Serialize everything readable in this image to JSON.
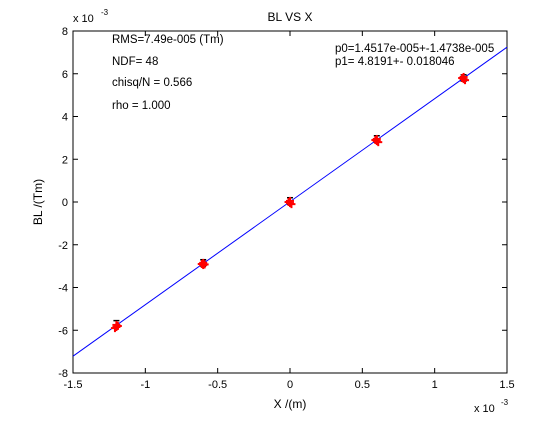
{
  "chart_data": {
    "type": "scatter",
    "title": "BL VS X",
    "xlabel": "X /(m)",
    "ylabel": "BL /(Tm)",
    "xlim": [
      -1.5,
      1.5
    ],
    "ylim": [
      -8,
      8
    ],
    "x_scale_label": "x 10",
    "x_scale_exponent": "-3",
    "y_scale_label": "x 10",
    "y_scale_exponent": "-3",
    "x_ticks": [
      "-1.5",
      "-1",
      "-0.5",
      "0",
      "0.5",
      "1",
      "1.5"
    ],
    "x_tick_values": [
      -1.5,
      -1,
      -0.5,
      0,
      0.5,
      1,
      1.5
    ],
    "y_ticks": [
      "-8",
      "-6",
      "-4",
      "-2",
      "0",
      "2",
      "4",
      "6",
      "8"
    ],
    "y_tick_values": [
      -8,
      -6,
      -4,
      -2,
      0,
      2,
      4,
      6,
      8
    ],
    "grid": false,
    "series": [
      {
        "marker": "plus",
        "color": "#ff0000",
        "points": [
          {
            "x": -1.2,
            "y": -5.75
          },
          {
            "x": -1.2,
            "y": -5.85
          },
          {
            "x": -1.21,
            "y": -5.9
          },
          {
            "x": -1.19,
            "y": -5.8
          },
          {
            "x": -0.6,
            "y": -2.85
          },
          {
            "x": -0.6,
            "y": -2.95
          },
          {
            "x": -0.61,
            "y": -2.9
          },
          {
            "x": -0.59,
            "y": -2.92
          },
          {
            "x": 0.0,
            "y": 0.05
          },
          {
            "x": 0.0,
            "y": -0.05
          },
          {
            "x": 0.01,
            "y": -0.1
          },
          {
            "x": -0.01,
            "y": 0.0
          },
          {
            "x": 0.6,
            "y": 2.85
          },
          {
            "x": 0.6,
            "y": 2.95
          },
          {
            "x": 0.61,
            "y": 2.8
          },
          {
            "x": 0.59,
            "y": 2.9
          },
          {
            "x": 1.2,
            "y": 5.85
          },
          {
            "x": 1.2,
            "y": 5.75
          },
          {
            "x": 1.21,
            "y": 5.7
          },
          {
            "x": 1.19,
            "y": 5.8
          }
        ]
      },
      {
        "marker": "errorbar",
        "color": "#000000",
        "points": [
          {
            "x": -1.2,
            "y": -5.7,
            "err": 0.15
          },
          {
            "x": -0.6,
            "y": -2.85,
            "err": 0.15
          },
          {
            "x": 0.0,
            "y": 0.05,
            "err": 0.15
          },
          {
            "x": 0.6,
            "y": 2.95,
            "err": 0.15
          },
          {
            "x": 1.2,
            "y": 5.8,
            "err": 0.15
          }
        ]
      },
      {
        "marker": "line",
        "color": "#0000ff",
        "points": [
          {
            "x": -1.5,
            "y": -7.214
          },
          {
            "x": 1.5,
            "y": 7.243
          }
        ]
      }
    ],
    "annotations": {
      "rms": "RMS=7.49e-005 (Tm)",
      "ndf": "NDF=   48",
      "chisq": "chisq/N = 0.566",
      "rho": "rho     =  1.000",
      "p0": "p0=1.4517e-005+-1.4738e-005",
      "p1": "p1=   4.8191+- 0.018046"
    }
  }
}
